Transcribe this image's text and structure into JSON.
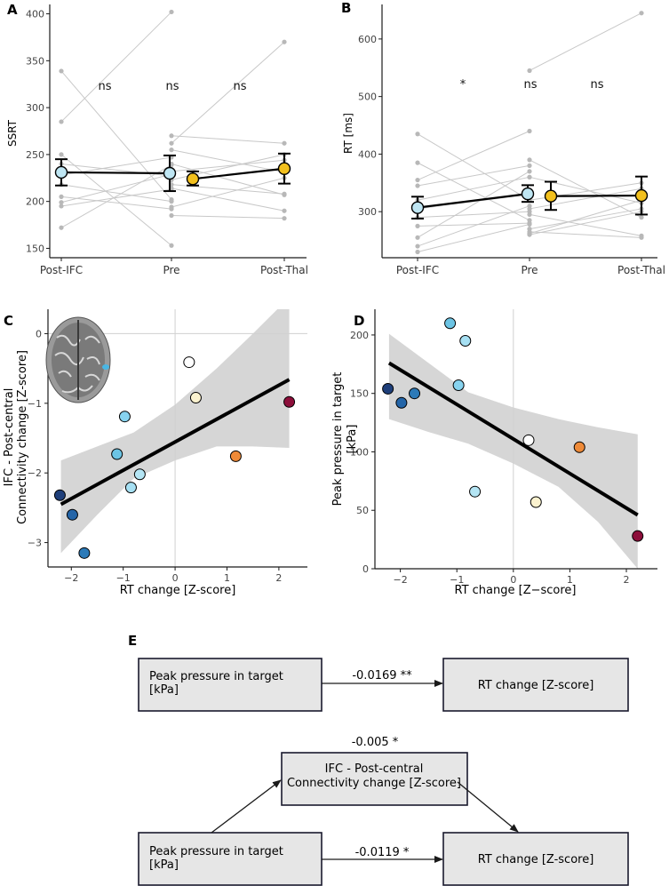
{
  "chart_data": [
    {
      "panel": "A",
      "type": "line",
      "title": "",
      "xlabel": "",
      "ylabel": "SSRT",
      "categories": [
        "Post-IFC",
        "Pre",
        "Post-Thal"
      ],
      "ylim": [
        140,
        410
      ],
      "yticks": [
        150,
        200,
        250,
        300,
        350,
        400
      ],
      "pair_groups": [
        {
          "from": "Post-IFC",
          "to": "Pre",
          "pairs": [
            [
              339,
              202
            ],
            [
              285,
              402
            ],
            [
              250,
              153
            ],
            [
              240,
              227
            ],
            [
              228,
              247
            ],
            [
              218,
              200
            ],
            [
              205,
              192
            ],
            [
              199,
              229
            ],
            [
              195,
              213
            ],
            [
              172,
              239
            ]
          ]
        },
        {
          "from": "Pre",
          "to": "Post-Thal",
          "pairs": [
            [
              270,
              262
            ],
            [
              262,
              370
            ],
            [
              255,
              231
            ],
            [
              240,
              207
            ],
            [
              232,
              244
            ],
            [
              223,
              250
            ],
            [
              218,
              208
            ],
            [
              214,
              190
            ],
            [
              194,
              225
            ],
            [
              185,
              182
            ]
          ]
        }
      ],
      "means": [
        {
          "category": "Post-IFC",
          "mean": 231,
          "ci": [
            217,
            245
          ],
          "color": "#bfe6f3"
        },
        {
          "category": "Pre",
          "mean": 230,
          "ci": [
            211,
            249
          ],
          "color": "#bfe6f3"
        },
        {
          "category": "Pre",
          "mean": 224,
          "ci": [
            217,
            232
          ],
          "color": "#f2c01d"
        },
        {
          "category": "Post-Thal",
          "mean": 235,
          "ci": [
            219,
            251
          ],
          "color": "#f2c01d"
        }
      ],
      "annotations": [
        "ns",
        "ns",
        "ns"
      ]
    },
    {
      "panel": "B",
      "type": "line",
      "title": "",
      "xlabel": "",
      "ylabel": "RT [ms]",
      "categories": [
        "Post-IFC",
        "Pre",
        "Post-Thal"
      ],
      "ylim": [
        220,
        660
      ],
      "yticks": [
        300,
        400,
        500,
        600
      ],
      "pair_groups": [
        {
          "from": "Post-IFC",
          "to": "Pre",
          "pairs": [
            [
              435,
              320
            ],
            [
              385,
              285
            ],
            [
              355,
              440
            ],
            [
              345,
              380
            ],
            [
              320,
              360
            ],
            [
              305,
              330
            ],
            [
              290,
              300
            ],
            [
              275,
              280
            ],
            [
              255,
              370
            ],
            [
              240,
              310
            ],
            [
              230,
              278
            ]
          ]
        },
        {
          "from": "Pre",
          "to": "Post-Thal",
          "pairs": [
            [
              545,
              645
            ],
            [
              390,
              290
            ],
            [
              360,
              315
            ],
            [
              320,
              350
            ],
            [
              305,
              340
            ],
            [
              295,
              258
            ],
            [
              270,
              305
            ],
            [
              265,
              255
            ],
            [
              262,
              320
            ],
            [
              260,
              300
            ]
          ]
        }
      ],
      "means": [
        {
          "category": "Post-IFC",
          "mean": 307,
          "ci": [
            288,
            326
          ],
          "color": "#bfe6f3"
        },
        {
          "category": "Pre",
          "mean": 331,
          "ci": [
            317,
            346
          ],
          "color": "#bfe6f3"
        },
        {
          "category": "Pre",
          "mean": 327,
          "ci": [
            303,
            352
          ],
          "color": "#f2c01d"
        },
        {
          "category": "Post-Thal",
          "mean": 328,
          "ci": [
            295,
            361
          ],
          "color": "#f2c01d"
        }
      ],
      "annotations": [
        "*",
        "ns",
        "ns"
      ]
    },
    {
      "panel": "C",
      "type": "scatter",
      "title": "",
      "xlabel": "RT change [Z-score]",
      "ylabel_lines": [
        "IFC - Post-central",
        "Connectivity change [Z-score]"
      ],
      "xlim": [
        -2.45,
        2.55
      ],
      "ylim": [
        -3.35,
        0.35
      ],
      "xticks": [
        -2,
        -1,
        0,
        1,
        2
      ],
      "yticks": [
        -3,
        -2,
        -1,
        0
      ],
      "points": [
        {
          "x": -2.22,
          "y": -2.32,
          "color": "#1f3f7a"
        },
        {
          "x": -1.98,
          "y": -2.6,
          "color": "#2465a8"
        },
        {
          "x": -1.75,
          "y": -3.15,
          "color": "#2c7ab8"
        },
        {
          "x": -1.12,
          "y": -1.73,
          "color": "#6cc4e4"
        },
        {
          "x": -0.97,
          "y": -1.19,
          "color": "#87d3ef"
        },
        {
          "x": -0.85,
          "y": -2.21,
          "color": "#a6e0f3"
        },
        {
          "x": -0.68,
          "y": -2.02,
          "color": "#b4e5f4"
        },
        {
          "x": 0.27,
          "y": -0.41,
          "color": "#ffffff"
        },
        {
          "x": 0.4,
          "y": -0.92,
          "color": "#fbf2cf"
        },
        {
          "x": 1.17,
          "y": -1.76,
          "color": "#ee8a38"
        },
        {
          "x": 2.2,
          "y": -0.98,
          "color": "#8c0e3a"
        }
      ],
      "fit": {
        "x": [
          -2.2,
          2.2
        ],
        "y": [
          -2.45,
          -0.66
        ]
      },
      "band": {
        "x": [
          -2.2,
          -1.5,
          -0.8,
          0,
          0.8,
          1.5,
          2.2
        ],
        "upper": [
          -1.82,
          -1.62,
          -1.42,
          -1.02,
          -0.5,
          0.0,
          0.52
        ],
        "lower": [
          -3.15,
          -2.6,
          -2.08,
          -1.82,
          -1.62,
          -1.62,
          -1.64
        ]
      }
    },
    {
      "panel": "D",
      "type": "scatter",
      "title": "",
      "xlabel": "RT change [Z−score]",
      "ylabel_lines": [
        "Peak pressure in target",
        "[kPa]"
      ],
      "xlim": [
        -2.45,
        2.55
      ],
      "ylim": [
        0,
        222
      ],
      "xticks": [
        -2,
        -1,
        0,
        1,
        2
      ],
      "yticks": [
        0,
        50,
        100,
        150,
        200
      ],
      "points": [
        {
          "x": -2.22,
          "y": 154,
          "color": "#1f3f7a"
        },
        {
          "x": -1.98,
          "y": 142,
          "color": "#2465a8"
        },
        {
          "x": -1.75,
          "y": 150,
          "color": "#2c7ab8"
        },
        {
          "x": -1.12,
          "y": 210,
          "color": "#6cc4e4"
        },
        {
          "x": -0.97,
          "y": 157,
          "color": "#87d3ef"
        },
        {
          "x": -0.85,
          "y": 195,
          "color": "#a6e0f3"
        },
        {
          "x": -0.68,
          "y": 66,
          "color": "#b4e5f4"
        },
        {
          "x": 0.27,
          "y": 110,
          "color": "#ffffff"
        },
        {
          "x": 0.4,
          "y": 57,
          "color": "#fbf2cf"
        },
        {
          "x": 1.17,
          "y": 104,
          "color": "#ee8a38"
        },
        {
          "x": 2.2,
          "y": 28,
          "color": "#8c0e3a"
        }
      ],
      "fit": {
        "x": [
          -2.2,
          2.2
        ],
        "y": [
          176,
          46
        ]
      },
      "band": {
        "x": [
          -2.2,
          -1.5,
          -0.8,
          0,
          0.8,
          1.5,
          2.2
        ],
        "upper": [
          201,
          176,
          151,
          138,
          128,
          121,
          115
        ],
        "lower": [
          128,
          117,
          107,
          90,
          70,
          40,
          0
        ]
      }
    }
  ],
  "panels": {
    "A": {
      "letter": "A"
    },
    "B": {
      "letter": "B"
    },
    "C": {
      "letter": "C"
    },
    "D": {
      "letter": "D"
    },
    "E": {
      "letter": "E"
    }
  },
  "mediation": {
    "top": {
      "from": "Peak pressure in target\n[kPa]",
      "to": "RT change [Z-score]",
      "coef": "-0.0169 **"
    },
    "bottom": {
      "from": "Peak pressure in target\n[kPa]",
      "mediator": "IFC - Post-central\nConnectivity change [Z-score]",
      "to": "RT change [Z-score]",
      "mediator_coef": "-0.005 *",
      "direct_coef": "-0.0119 *"
    }
  }
}
